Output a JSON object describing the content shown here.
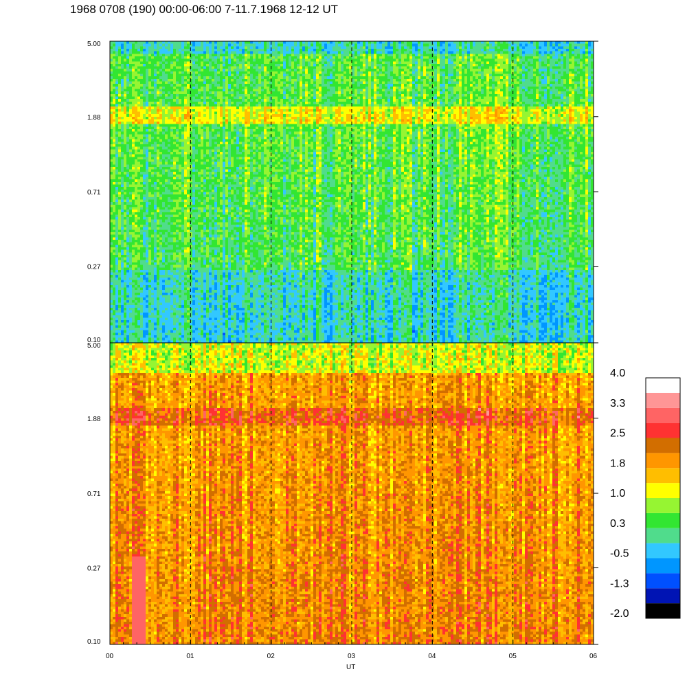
{
  "title": "1968 0708 (190) 00:00-06:00 7-11.7.1968  12-12 UT",
  "chart_data": {
    "type": "heatmap",
    "xlabel": "UT",
    "x_ticks": [
      "00",
      "01",
      "02",
      "03",
      "04",
      "05",
      "06"
    ],
    "xlim": [
      0,
      6
    ],
    "panels": [
      {
        "name": "",
        "y_ticks": [
          "5.00",
          "1.88",
          "0.71",
          "0.27",
          "0.10"
        ],
        "ylim": [
          0.1,
          5.0
        ],
        "y_scale": "log",
        "dominant_level_range": [
          -0.5,
          1.8
        ],
        "dashed_gridlines_at_x": [
          1,
          2,
          3,
          4,
          5
        ]
      },
      {
        "name": "",
        "y_ticks": [
          "5.00",
          "1.88",
          "0.71",
          "0.27",
          "0.10"
        ],
        "ylim": [
          0.1,
          5.0
        ],
        "y_scale": "log",
        "dominant_level_range": [
          1.0,
          2.5
        ],
        "dashed_gridlines_at_x": [
          1,
          2,
          3,
          4,
          5
        ]
      }
    ],
    "colorbar": {
      "labels": [
        "4.0",
        "3.3",
        "2.5",
        "1.8",
        "1.0",
        "0.3",
        "-0.5",
        "-1.3",
        "-2.0"
      ],
      "range": [
        -2.0,
        4.0
      ],
      "colors": [
        "#000000",
        "#0014b4",
        "#0050ff",
        "#0096ff",
        "#32c8ff",
        "#50dc8c",
        "#32e632",
        "#96f532",
        "#ffff00",
        "#ffbe00",
        "#ff9600",
        "#d26e00",
        "#ff3232",
        "#ff6464",
        "#ff9696",
        "#ffffff"
      ]
    }
  }
}
